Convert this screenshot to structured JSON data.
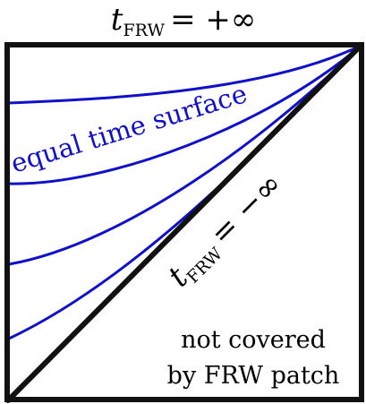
{
  "colors": {
    "frame": "#111111",
    "curves": "#1010cc",
    "text": "#000000",
    "background": "#ffffff"
  },
  "labels": {
    "top_symbol": "t",
    "top_subscript": "FRW",
    "top_equation": "= +∞",
    "curve_label": "equal time surface",
    "diagonal_symbol": "t",
    "diagonal_subscript": "FRW",
    "diagonal_equation": "= −∞",
    "region_line1": "not covered",
    "region_line2": "by FRW patch"
  }
}
